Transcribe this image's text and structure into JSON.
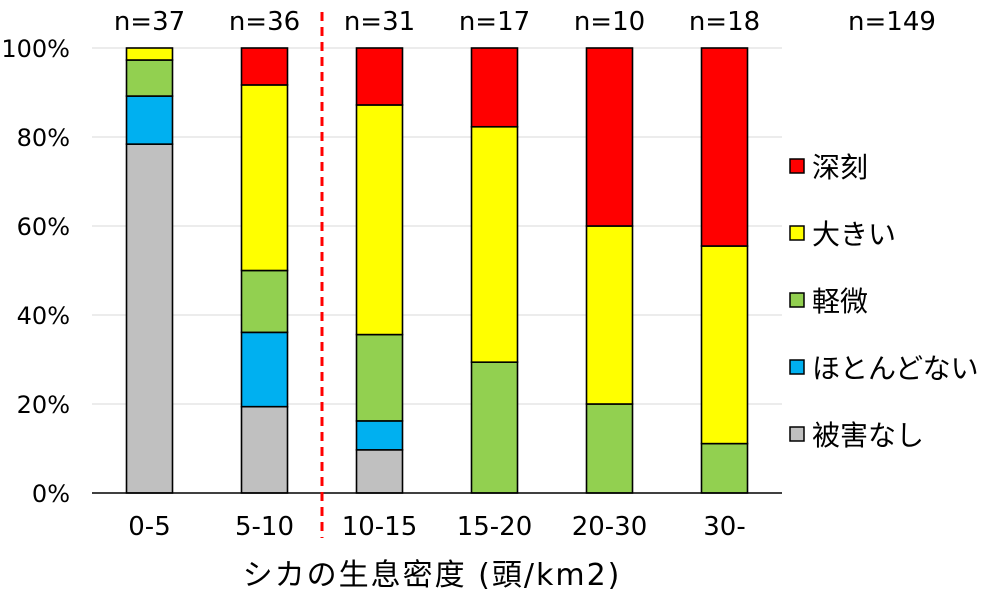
{
  "chart_data": {
    "type": "bar",
    "stacked": true,
    "percent": true,
    "categories": [
      "0-5",
      "5-10",
      "10-15",
      "15-20",
      "20-30",
      "30-"
    ],
    "counts": [
      "n=37",
      "n=36",
      "n=31",
      "n=17",
      "n=10",
      "n=18"
    ],
    "total_count": "n=149",
    "series": [
      {
        "name": "被害なし",
        "color": "#c0c0c0",
        "values": [
          78.4,
          19.4,
          9.7,
          0,
          0,
          0
        ]
      },
      {
        "name": "ほとんどない",
        "color": "#00b0f0",
        "values": [
          10.8,
          16.7,
          6.5,
          0,
          0,
          0
        ]
      },
      {
        "name": "軽微",
        "color": "#92d050",
        "values": [
          8.1,
          13.9,
          19.4,
          29.4,
          20.0,
          11.1
        ]
      },
      {
        "name": "大きい",
        "color": "#ffff00",
        "values": [
          2.7,
          41.7,
          51.6,
          52.9,
          40.0,
          44.4
        ]
      },
      {
        "name": "深刻",
        "color": "#ff0000",
        "values": [
          0,
          8.3,
          12.8,
          17.7,
          40.0,
          44.5
        ]
      }
    ],
    "legend_order": [
      "深刻",
      "大きい",
      "軽微",
      "ほとんどない",
      "被害なし"
    ],
    "legend_position": "right",
    "xlabel": "シカの生息密度 (頭/km2)",
    "ylabel": "",
    "ylim": [
      0,
      100
    ],
    "yticks": [
      "0%",
      "20%",
      "40%",
      "60%",
      "80%",
      "100%"
    ],
    "gridlines": true,
    "divider": {
      "after_category_index": 1,
      "color": "#ff0000",
      "style": "dashed"
    }
  }
}
